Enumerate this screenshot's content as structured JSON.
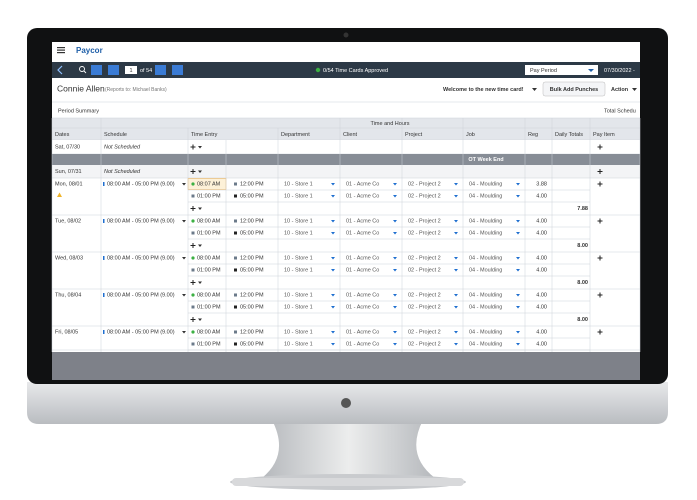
{
  "header": {
    "logo": "Paycor"
  },
  "toolbar": {
    "page": "1",
    "page_total": "of 54",
    "status": "0/54 Time Cards Approved",
    "period": "Pay Period",
    "date_range": "07/30/2022 -"
  },
  "employee": {
    "name": "Connie Allen",
    "reports_to": "(Reports to: Michael Banks)",
    "welcome": "Welcome to the new time card!",
    "bulk_button": "Bulk Add Punches",
    "action": "Action"
  },
  "summary": {
    "title": "Period Summary",
    "total": "Total Schedu"
  },
  "table": {
    "group_header": "Time and Hours",
    "columns": [
      "Dates",
      "Schedule",
      "Time Entry",
      "Department",
      "Client",
      "Project",
      "Job",
      "Reg",
      "Daily Totals",
      "Pay Item"
    ],
    "week_end": "OT Week End",
    "days": [
      {
        "date": "Sat, 07/30",
        "schedule": "Not Scheduled",
        "punches": []
      },
      {
        "date": "Sun, 07/31",
        "schedule": "Not Scheduled",
        "punches": []
      },
      {
        "date": "Mon, 08/01",
        "schedule": "08:00 AM - 05:00 PM (9.00)",
        "punches": [
          {
            "in": "08:07 AM",
            "out": "12:00 PM",
            "department": "10 - Store 1",
            "client": "01 - Acme Co",
            "project": "02 - Project 2",
            "job": "04 - Moulding",
            "reg": "3.88"
          },
          {
            "in": "01:00 PM",
            "out": "05:00 PM",
            "department": "10 - Store 1",
            "client": "01 - Acme Co",
            "project": "02 - Project 2",
            "job": "04 - Moulding",
            "reg": "4.00"
          }
        ],
        "total": "7.88"
      },
      {
        "date": "Tue, 08/02",
        "schedule": "08:00 AM - 05:00 PM (9.00)",
        "punches": [
          {
            "in": "08:00 AM",
            "out": "12:00 PM",
            "department": "10 - Store 1",
            "client": "01 - Acme Co",
            "project": "02 - Project 2",
            "job": "04 - Moulding",
            "reg": "4.00"
          },
          {
            "in": "01:00 PM",
            "out": "05:00 PM",
            "department": "10 - Store 1",
            "client": "01 - Acme Co",
            "project": "02 - Project 2",
            "job": "04 - Moulding",
            "reg": "4.00"
          }
        ],
        "total": "8.00"
      },
      {
        "date": "Wed, 08/03",
        "schedule": "08:00 AM - 05:00 PM (9.00)",
        "punches": [
          {
            "in": "08:00 AM",
            "out": "12:00 PM",
            "department": "10 - Store 1",
            "client": "01 - Acme Co",
            "project": "02 - Project 2",
            "job": "04 - Moulding",
            "reg": "4.00"
          },
          {
            "in": "01:00 PM",
            "out": "05:00 PM",
            "department": "10 - Store 1",
            "client": "01 - Acme Co",
            "project": "02 - Project 2",
            "job": "04 - Moulding",
            "reg": "4.00"
          }
        ],
        "total": "8.00"
      },
      {
        "date": "Thu, 08/04",
        "schedule": "08:00 AM - 05:00 PM (9.00)",
        "punches": [
          {
            "in": "08:00 AM",
            "out": "12:00 PM",
            "department": "10 - Store 1",
            "client": "01 - Acme Co",
            "project": "02 - Project 2",
            "job": "04 - Moulding",
            "reg": "4.00"
          },
          {
            "in": "01:00 PM",
            "out": "05:00 PM",
            "department": "10 - Store 1",
            "client": "01 - Acme Co",
            "project": "02 - Project 2",
            "job": "04 - Moulding",
            "reg": "4.00"
          }
        ],
        "total": "8.00"
      },
      {
        "date": "Fri, 08/05",
        "schedule": "08:00 AM - 05:00 PM (9.00)",
        "punches": [
          {
            "in": "08:00 AM",
            "out": "12:00 PM",
            "department": "10 - Store 1",
            "client": "01 - Acme Co",
            "project": "02 - Project 2",
            "job": "04 - Moulding",
            "reg": "4.00"
          },
          {
            "in": "01:00 PM",
            "out": "05:00 PM",
            "department": "10 - Store 1",
            "client": "01 - Acme Co",
            "project": "02 - Project 2",
            "job": "04 - Moulding",
            "reg": "4.00"
          }
        ]
      }
    ]
  }
}
